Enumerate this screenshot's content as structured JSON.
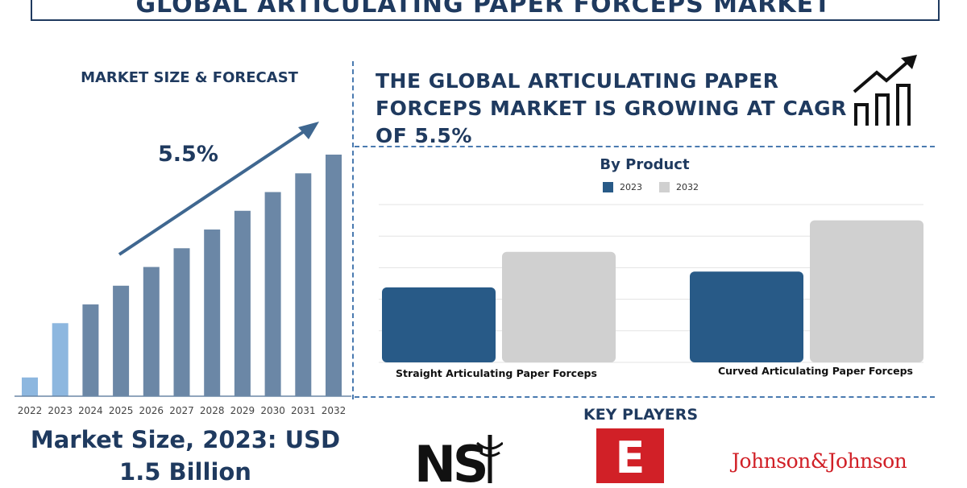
{
  "title": "GLOBAL ARTICULATING PAPER FORCEPS MARKET",
  "forecast_panel": {
    "heading": "MARKET SIZE & FORECAST",
    "cagr_label": "5.5%",
    "market_size_text": "Market Size, 2023: USD 1.5 Billion"
  },
  "headline": "THE GLOBAL ARTICULATING PAPER FORCEPS MARKET IS GROWING AT CAGR OF 5.5%",
  "key_players": {
    "title": "KEY PLAYERS",
    "logos": [
      "NSI",
      "E",
      "Johnson&Johnson"
    ]
  },
  "icons": [
    "growth-chart-icon",
    "trend-arrow-icon"
  ],
  "colors": {
    "navy": "#1f3a5f",
    "bar_dark": "#6b87a6",
    "bar_light": "#8db7df",
    "product_2023": "#285a87",
    "product_2032": "#d0d0d0",
    "logo_red": "#d12027"
  },
  "chart_data": [
    {
      "type": "bar",
      "title": "",
      "categories": [
        "2022",
        "2023",
        "2024",
        "2025",
        "2026",
        "2027",
        "2028",
        "2029",
        "2030",
        "2031",
        "2032"
      ],
      "values": [
        1.0,
        3.9,
        4.9,
        5.9,
        6.9,
        7.9,
        8.9,
        9.9,
        10.9,
        11.9,
        12.9
      ],
      "highlight": [
        "2022",
        "2023"
      ],
      "grid": false
    },
    {
      "type": "bar",
      "title": "By Product",
      "categories": [
        "Straight Articulating Paper Forceps",
        "Curved Articulating Paper Forceps"
      ],
      "series": [
        {
          "name": "2023",
          "values": [
            1.9,
            2.3
          ]
        },
        {
          "name": "2032",
          "values": [
            2.8,
            3.6
          ]
        }
      ],
      "ylim": [
        0,
        4
      ],
      "grid": true,
      "legend": "top-center"
    }
  ]
}
